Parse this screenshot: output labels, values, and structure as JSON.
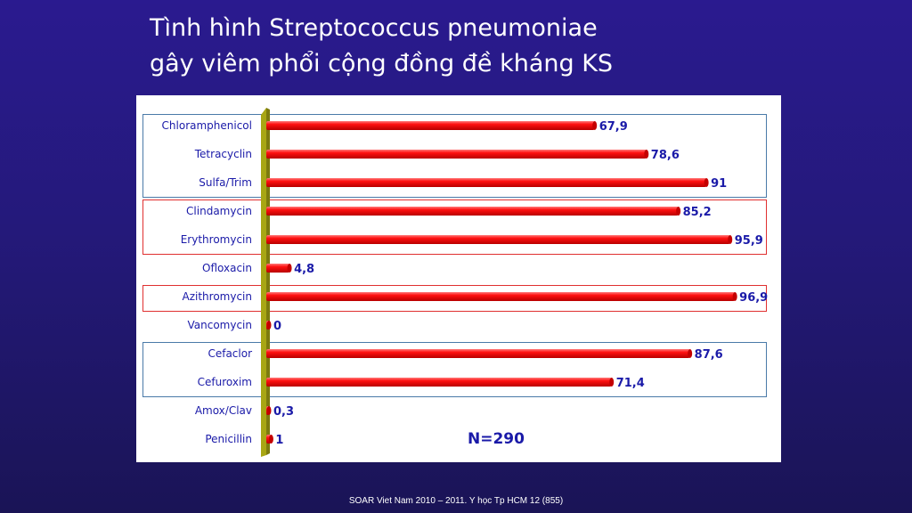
{
  "slide": {
    "title_line1": "Tình hình Streptococcus pneumoniae",
    "title_line2": "gây viêm phổi cộng đồng đề kháng KS",
    "footer": "SOAR Viet Nam 2010 – 2011. Y học Tp HCM 12 (855)"
  },
  "colors": {
    "bar": "#ee0000",
    "bar_end": "#c40000",
    "value_label": "#1a1aa8",
    "axis_bar": "#a8a614",
    "blue_box": "#4a7aa8",
    "red_box": "#e03030"
  },
  "chart_data": {
    "type": "bar",
    "orientation": "horizontal",
    "categories": [
      "Chloramphenicol",
      "Tetracyclin",
      "Sulfa/Trim",
      "Clindamycin",
      "Erythromycin",
      "Ofloxacin",
      "Azithromycin",
      "Vancomycin",
      "Cefaclor",
      "Cefuroxim",
      "Amox/Clav",
      "Penicillin"
    ],
    "values": [
      67.9,
      78.6,
      91,
      85.2,
      95.9,
      4.8,
      96.9,
      0,
      87.6,
      71.4,
      0.3,
      1
    ],
    "value_labels": [
      "67,9",
      "78,6",
      "91",
      "85,2",
      "95,9",
      "4,8",
      "96,9",
      "0",
      "87,6",
      "71,4",
      "0,3",
      "1"
    ],
    "xlim": [
      0,
      100
    ],
    "annotation": "N=290",
    "groups": [
      {
        "style": "blue",
        "from": 0,
        "to": 2
      },
      {
        "style": "red",
        "from": 3,
        "to": 4
      },
      {
        "style": "red",
        "from": 6,
        "to": 6
      },
      {
        "style": "blue",
        "from": 8,
        "to": 9
      }
    ]
  }
}
